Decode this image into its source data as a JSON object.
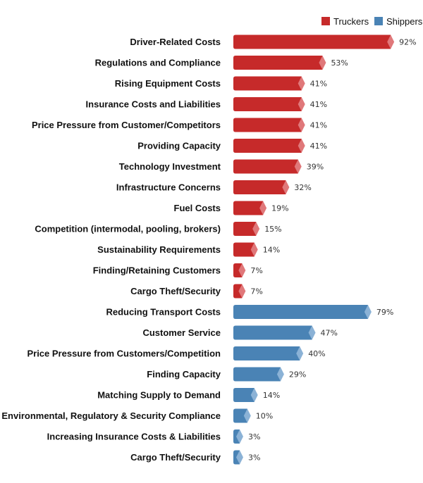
{
  "chart_data": {
    "type": "bar",
    "orientation": "horizontal",
    "legend": [
      {
        "name": "Truckers",
        "color": "#c62a2a",
        "tip_color": "#e0787a"
      },
      {
        "name": "Shippers",
        "color": "#4a83b5",
        "tip_color": "#8bb2d6"
      }
    ],
    "legend_placement": "top-right",
    "unit": "%",
    "xlim": [
      0,
      100
    ],
    "grid": false,
    "categories": [
      {
        "label": "Driver-Related Costs",
        "value": 92,
        "series": "Truckers"
      },
      {
        "label": "Regulations and Compliance",
        "value": 53,
        "series": "Truckers"
      },
      {
        "label": "Rising Equipment Costs",
        "value": 41,
        "series": "Truckers"
      },
      {
        "label": "Insurance Costs and Liabilities",
        "value": 41,
        "series": "Truckers"
      },
      {
        "label": "Price Pressure from Customer/Competitors",
        "value": 41,
        "series": "Truckers"
      },
      {
        "label": "Providing Capacity",
        "value": 41,
        "series": "Truckers"
      },
      {
        "label": "Technology Investment",
        "value": 39,
        "series": "Truckers"
      },
      {
        "label": "Infrastructure Concerns",
        "value": 32,
        "series": "Truckers"
      },
      {
        "label": "Fuel Costs",
        "value": 19,
        "series": "Truckers"
      },
      {
        "label": "Competition (intermodal, pooling, brokers)",
        "value": 15,
        "series": "Truckers"
      },
      {
        "label": "Sustainability Requirements",
        "value": 14,
        "series": "Truckers"
      },
      {
        "label": "Finding/Retaining Customers",
        "value": 7,
        "series": "Truckers"
      },
      {
        "label": "Cargo Theft/Security",
        "value": 7,
        "series": "Truckers"
      },
      {
        "label": "Reducing Transport Costs",
        "value": 79,
        "series": "Shippers"
      },
      {
        "label": "Customer Service",
        "value": 47,
        "series": "Shippers"
      },
      {
        "label": "Price Pressure from Customers/Competition",
        "value": 40,
        "series": "Shippers"
      },
      {
        "label": "Finding Capacity",
        "value": 29,
        "series": "Shippers"
      },
      {
        "label": "Matching Supply to Demand",
        "value": 14,
        "series": "Shippers"
      },
      {
        "label": "Environmental, Regulatory & Security Compliance",
        "value": 10,
        "series": "Shippers"
      },
      {
        "label": "Increasing Insurance Costs & Liabilities",
        "value": 3,
        "series": "Shippers"
      },
      {
        "label": "Cargo Theft/Security",
        "value": 3,
        "series": "Shippers"
      }
    ]
  }
}
